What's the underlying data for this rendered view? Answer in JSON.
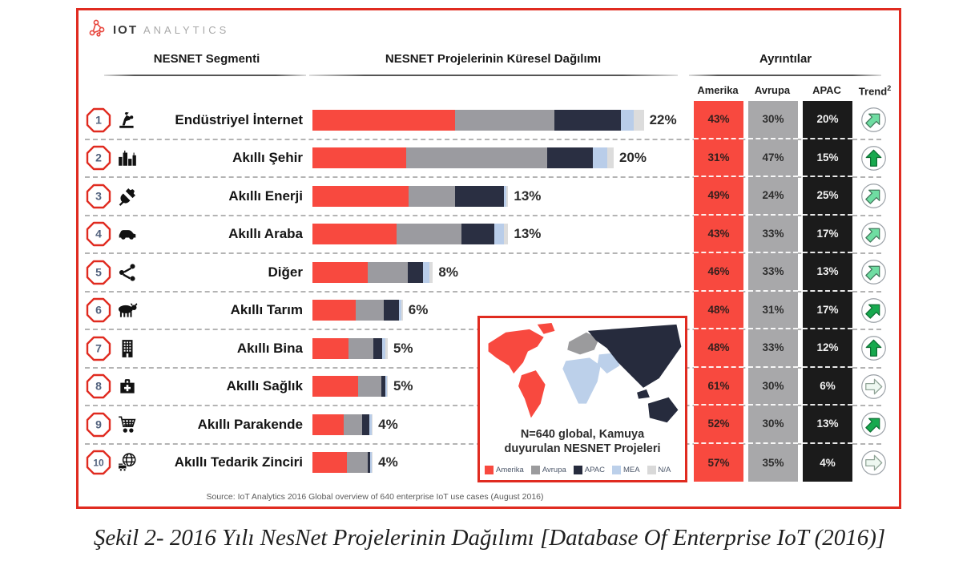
{
  "logo": {
    "brand_bold": "IOT",
    "brand_light": "ANALYTICS"
  },
  "header": {
    "segment_col": "NESNET Segmenti",
    "distribution_col": "NESNET Projelerinin Küresel Dağılımı",
    "details_col": "Ayrıntılar",
    "trend_label": "Trend",
    "trend_sup": "2"
  },
  "detail_columns": [
    "Amerika",
    "Avrupa",
    "APAC"
  ],
  "rows": [
    {
      "rank": "1",
      "icon": "robot-arm",
      "label": "Endüstriyel İnternet",
      "total_pct": 22,
      "total_label": "22%",
      "amerika": "43%",
      "avrupa": "30%",
      "apac": "20%",
      "amerika_v": 43,
      "avrupa_v": 30,
      "apac_v": 20,
      "mea_v": 4,
      "na_v": 3,
      "trend": {
        "shape": "diag",
        "tone": "medium"
      }
    },
    {
      "rank": "2",
      "icon": "city",
      "label": "Akıllı Şehir",
      "total_pct": 20,
      "total_label": "20%",
      "amerika": "31%",
      "avrupa": "47%",
      "apac": "15%",
      "amerika_v": 31,
      "avrupa_v": 47,
      "apac_v": 15,
      "mea_v": 5,
      "na_v": 2,
      "trend": {
        "shape": "up",
        "tone": "strong"
      }
    },
    {
      "rank": "3",
      "icon": "plug",
      "label": "Akıllı Enerji",
      "total_pct": 13,
      "total_label": "13%",
      "amerika": "49%",
      "avrupa": "24%",
      "apac": "25%",
      "amerika_v": 49,
      "avrupa_v": 24,
      "apac_v": 25,
      "mea_v": 1,
      "na_v": 1,
      "trend": {
        "shape": "diag",
        "tone": "medium"
      }
    },
    {
      "rank": "4",
      "icon": "car",
      "label": "Akıllı Araba",
      "total_pct": 13,
      "total_label": "13%",
      "amerika": "43%",
      "avrupa": "33%",
      "apac": "17%",
      "amerika_v": 43,
      "avrupa_v": 33,
      "apac_v": 17,
      "mea_v": 5,
      "na_v": 2,
      "trend": {
        "shape": "diag",
        "tone": "medium"
      }
    },
    {
      "rank": "5",
      "icon": "share",
      "label": "Diğer",
      "total_pct": 8,
      "total_label": "8%",
      "amerika": "46%",
      "avrupa": "33%",
      "apac": "13%",
      "amerika_v": 46,
      "avrupa_v": 33,
      "apac_v": 13,
      "mea_v": 5,
      "na_v": 3,
      "trend": {
        "shape": "diag",
        "tone": "medium"
      }
    },
    {
      "rank": "6",
      "icon": "cow",
      "label": "Akıllı Tarım",
      "total_pct": 6,
      "total_label": "6%",
      "amerika": "48%",
      "avrupa": "31%",
      "apac": "17%",
      "amerika_v": 48,
      "avrupa_v": 31,
      "apac_v": 17,
      "mea_v": 2,
      "na_v": 2,
      "trend": {
        "shape": "diag",
        "tone": "strong"
      }
    },
    {
      "rank": "7",
      "icon": "building",
      "label": "Akıllı Bina",
      "total_pct": 5,
      "total_label": "5%",
      "amerika": "48%",
      "avrupa": "33%",
      "apac": "12%",
      "amerika_v": 48,
      "avrupa_v": 33,
      "apac_v": 12,
      "mea_v": 4,
      "na_v": 3,
      "trend": {
        "shape": "up",
        "tone": "strong"
      }
    },
    {
      "rank": "8",
      "icon": "medical-bag",
      "label": "Akıllı Sağlık",
      "total_pct": 5,
      "total_label": "5%",
      "amerika": "61%",
      "avrupa": "30%",
      "apac": "6%",
      "amerika_v": 61,
      "avrupa_v": 30,
      "apac_v": 6,
      "mea_v": 2,
      "na_v": 1,
      "trend": {
        "shape": "right",
        "tone": "weak"
      }
    },
    {
      "rank": "9",
      "icon": "cart",
      "label": "Akıllı Parakende",
      "total_pct": 4,
      "total_label": "4%",
      "amerika": "52%",
      "avrupa": "30%",
      "apac": "13%",
      "amerika_v": 52,
      "avrupa_v": 30,
      "apac_v": 13,
      "mea_v": 3,
      "na_v": 2,
      "trend": {
        "shape": "diag",
        "tone": "strong"
      }
    },
    {
      "rank": "10",
      "icon": "globe-truck",
      "label": "Akıllı Tedarik Zinciri",
      "total_pct": 4,
      "total_label": "4%",
      "amerika": "57%",
      "avrupa": "35%",
      "apac": "4%",
      "amerika_v": 57,
      "avrupa_v": 35,
      "apac_v": 4,
      "mea_v": 2,
      "na_v": 2,
      "trend": {
        "shape": "right",
        "tone": "weak"
      }
    }
  ],
  "map": {
    "caption_line1": "N=640 global, Kamuya",
    "caption_line2": "duyurulan NESNET Projeleri",
    "legend": [
      {
        "label": "Amerika",
        "color": "#f8493f"
      },
      {
        "label": "Avrupa",
        "color": "#9b9b9d"
      },
      {
        "label": "APAC",
        "color": "#262b3d"
      },
      {
        "label": "MEA",
        "color": "#bcd0ea"
      },
      {
        "label": "N/A",
        "color": "#d9d9d9"
      }
    ]
  },
  "source": "Source: IoT Analytics 2016 Global overview of 640 enterprise IoT use cases (August 2016)",
  "caption": "Şekil 2- 2016 Yılı NesNet Projelerinin Dağılımı [Database Of Enterprise IoT (2016)]",
  "colors": {
    "amerika": "#f8493f",
    "avrupa": "#9b9ba0",
    "apac_bar": "#2a2f42",
    "apac_cell": "#1b1b1b",
    "avrupa_cell": "#a8a8aa",
    "mea": "#b9cde9",
    "na": "#dcdcdc",
    "badge_border": "#e02b20",
    "badge_number": "#51617d",
    "trend_strong": "#17a94e",
    "trend_medium": "#6fdda2",
    "trend_weak": "#eef8f1"
  },
  "chart_data": {
    "type": "bar",
    "title": "NESNET Projelerinin Küresel Dağılımı",
    "subtitle": "N=640 global, Kamuya duyurulan NESNET Projeleri",
    "categories": [
      "Endüstriyel İnternet",
      "Akıllı Şehir",
      "Akıllı Enerji",
      "Akıllı Araba",
      "Diğer",
      "Akıllı Tarım",
      "Akıllı Bina",
      "Akıllı Sağlık",
      "Akıllı Parakende",
      "Akıllı Tedarik Zinciri"
    ],
    "values": [
      22,
      20,
      13,
      13,
      8,
      6,
      5,
      5,
      4,
      4
    ],
    "value_unit": "% of global NESNET projects",
    "stacked_composition_pct": {
      "series": [
        {
          "name": "Amerika",
          "values": [
            43,
            31,
            49,
            43,
            46,
            48,
            48,
            61,
            52,
            57
          ]
        },
        {
          "name": "Avrupa",
          "values": [
            30,
            47,
            24,
            33,
            33,
            31,
            33,
            30,
            30,
            35
          ]
        },
        {
          "name": "APAC",
          "values": [
            20,
            15,
            25,
            17,
            13,
            17,
            12,
            6,
            13,
            4
          ]
        }
      ]
    },
    "trend": [
      "up-diagonal",
      "up",
      "up-diagonal",
      "up-diagonal",
      "up-diagonal",
      "up-diagonal-strong",
      "up",
      "flat-right",
      "up-diagonal-strong",
      "flat-right"
    ],
    "legend_entries": [
      "Amerika",
      "Avrupa",
      "APAC",
      "MEA",
      "N/A"
    ],
    "legend_position": "map-inset-bottom",
    "grid": false,
    "xlabel": "",
    "ylabel": ""
  }
}
